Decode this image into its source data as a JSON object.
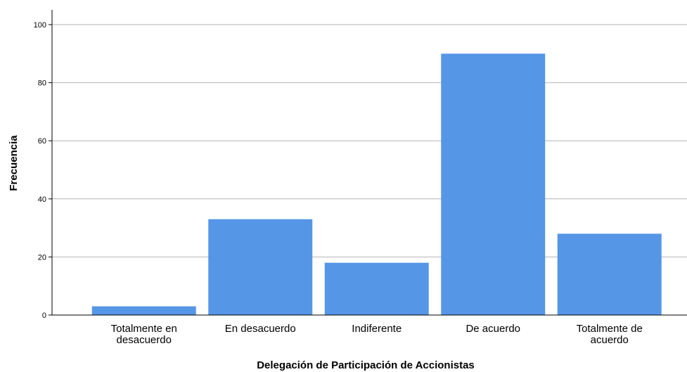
{
  "chart_data": {
    "type": "bar",
    "categories": [
      [
        "Totalmente en",
        "desacuerdo"
      ],
      [
        "En desacuerdo"
      ],
      [
        "Indiferente"
      ],
      [
        "De acuerdo"
      ],
      [
        "Totalmente de",
        "acuerdo"
      ]
    ],
    "values": [
      3,
      33,
      18,
      90,
      28
    ],
    "xlabel": "Delegación de Participación de Accionistas",
    "ylabel": "Frecuencia",
    "yticks": [
      "0",
      "20",
      "40",
      "60",
      "80",
      "100"
    ],
    "ylim": [
      0,
      105
    ],
    "grid": true,
    "legend": "none",
    "bar_color": "#5596e6",
    "grid_color": "#b4b4b4",
    "axis_color": "#000000"
  }
}
